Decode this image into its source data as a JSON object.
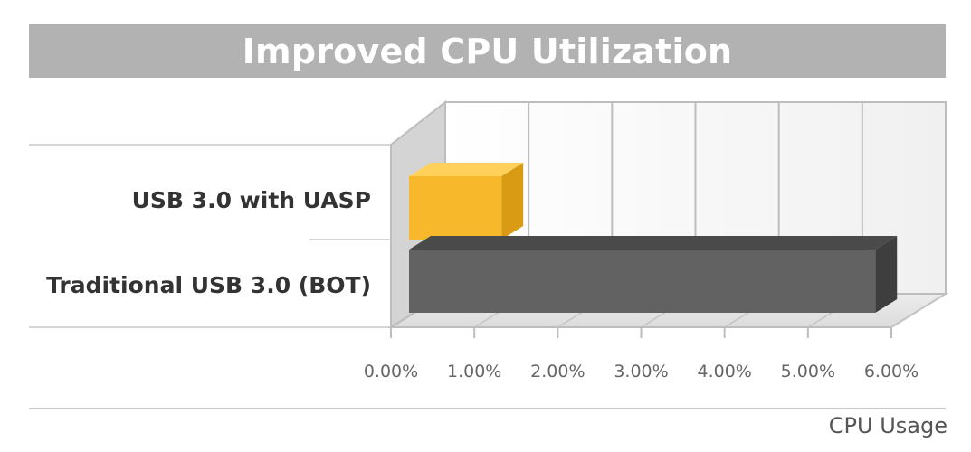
{
  "chart_data": {
    "type": "bar",
    "orientation": "horizontal",
    "title": "Improved CPU Utilization",
    "xlabel": "CPU Usage",
    "categories": [
      "USB 3.0 with UASP",
      "Traditional USB 3.0 (BOT)"
    ],
    "values": [
      1.15,
      5.8
    ],
    "x_ticks": [
      "0.00%",
      "1.00%",
      "2.00%",
      "3.00%",
      "4.00%",
      "5.00%",
      "6.00%"
    ],
    "xlim": [
      0,
      6
    ],
    "grid": true,
    "colors": [
      "#f7b92b",
      "#626262"
    ]
  }
}
